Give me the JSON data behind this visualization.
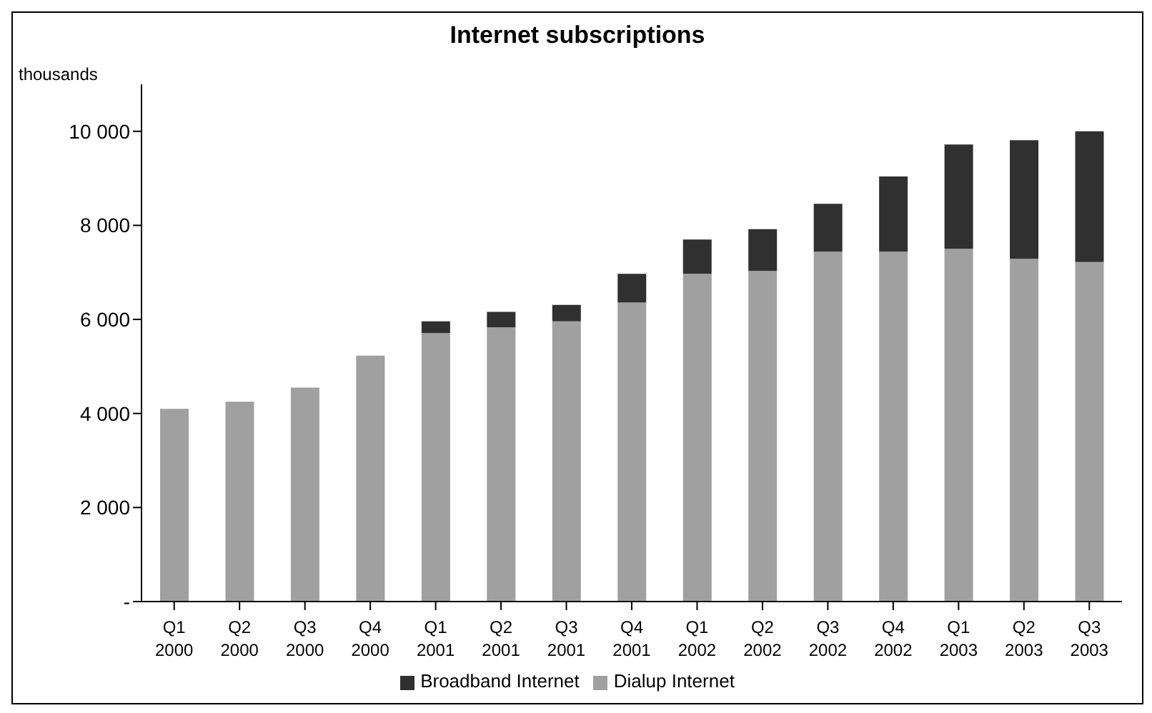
{
  "chart_data": {
    "type": "bar",
    "title": "Internet subscriptions",
    "ylabel": "thousands",
    "categories": [
      "Q1\n2000",
      "Q2\n2000",
      "Q3\n2000",
      "Q4\n2000",
      "Q1\n2001",
      "Q2\n2001",
      "Q3\n2001",
      "Q4\n2001",
      "Q1\n2002",
      "Q2\n2002",
      "Q3\n2002",
      "Q4\n2002",
      "Q1\n2003",
      "Q2\n2003",
      "Q3\n2003"
    ],
    "series": [
      {
        "name": "Dialup Internet",
        "color": "#a0a0a0",
        "values": [
          4100,
          4250,
          4550,
          5230,
          5710,
          5830,
          5960,
          6360,
          6970,
          7030,
          7440,
          7440,
          7500,
          7290,
          7220
        ]
      },
      {
        "name": "Broadband Internet",
        "color": "#303030",
        "values": [
          null,
          null,
          null,
          null,
          250,
          330,
          350,
          610,
          730,
          890,
          1020,
          1600,
          2220,
          2520,
          2780
        ]
      }
    ],
    "stacked": true,
    "ylim": [
      0,
      11000
    ],
    "yticks": [
      {
        "value": 0,
        "label": "-"
      },
      {
        "value": 2000,
        "label": "2 000"
      },
      {
        "value": 4000,
        "label": "4 000"
      },
      {
        "value": 6000,
        "label": "6 000"
      },
      {
        "value": 8000,
        "label": "8 000"
      },
      {
        "value": 10000,
        "label": "10 000"
      }
    ],
    "grid": false,
    "legend": "bottom"
  }
}
